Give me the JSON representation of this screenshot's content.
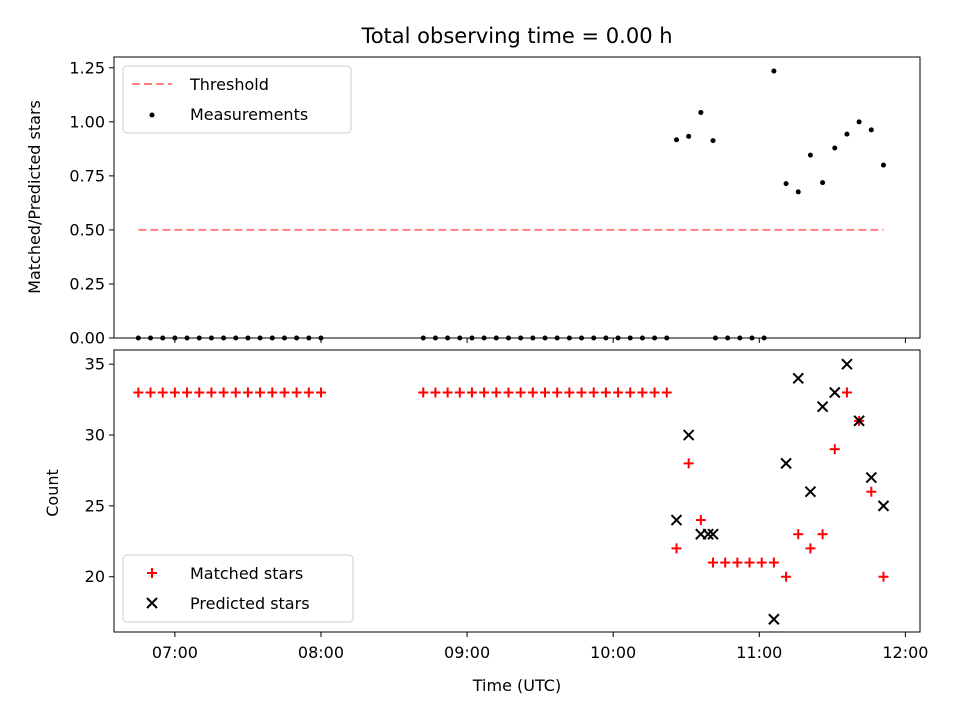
{
  "chart_data": [
    {
      "type": "scatter",
      "title": "Total observing time = 0.00 h",
      "xlabel": "",
      "ylabel": "Matched/Predicted stars",
      "xlim": [
        "06:35",
        "12:06"
      ],
      "ylim": [
        0,
        1.3
      ],
      "yticks": [
        0.0,
        0.25,
        0.5,
        0.75,
        1.0,
        1.25
      ],
      "ytick_labels": [
        "0.00",
        "0.25",
        "0.50",
        "0.75",
        "1.00",
        "1.25"
      ],
      "legend": {
        "position": "top-left",
        "entries": [
          "Threshold",
          "Measurements"
        ]
      },
      "series": [
        {
          "name": "Threshold",
          "style": "dashed-line",
          "color": "#ff7f7f",
          "x": [
            "06:45",
            "11:51"
          ],
          "y": [
            0.5,
            0.5
          ]
        },
        {
          "name": "Measurements",
          "style": "dot",
          "color": "#000000",
          "x": [
            "06:45",
            "06:50",
            "06:55",
            "07:00",
            "07:05",
            "07:10",
            "07:15",
            "07:20",
            "07:25",
            "07:30",
            "07:35",
            "07:40",
            "07:45",
            "07:50",
            "07:55",
            "08:00",
            "08:42",
            "08:47",
            "08:52",
            "08:57",
            "09:02",
            "09:07",
            "09:12",
            "09:17",
            "09:22",
            "09:27",
            "09:32",
            "09:37",
            "09:42",
            "09:47",
            "09:52",
            "09:57",
            "10:02",
            "10:07",
            "10:12",
            "10:17",
            "10:22",
            "10:42",
            "10:47",
            "10:52",
            "10:57",
            "11:02",
            "10:26",
            "10:31",
            "10:36",
            "10:41",
            "11:06",
            "11:11",
            "11:16",
            "11:21",
            "11:26",
            "11:31",
            "11:36",
            "11:41",
            "11:46",
            "11:51"
          ],
          "y": [
            0,
            0,
            0,
            0,
            0,
            0,
            0,
            0,
            0,
            0,
            0,
            0,
            0,
            0,
            0,
            0,
            0,
            0,
            0,
            0,
            0,
            0,
            0,
            0,
            0,
            0,
            0,
            0,
            0,
            0,
            0,
            0,
            0,
            0,
            0,
            0,
            0,
            0,
            0,
            0,
            0,
            0,
            0.917,
            0.933,
            1.043,
            0.913,
            1.235,
            0.714,
            0.676,
            0.846,
            0.719,
            0.879,
            0.943,
            1.0,
            0.963,
            0.8
          ]
        }
      ]
    },
    {
      "type": "scatter",
      "title": "",
      "xlabel": "Time (UTC)",
      "ylabel": "Count",
      "xlim": [
        "06:35",
        "12:06"
      ],
      "ylim": [
        16.1,
        36.0
      ],
      "yticks": [
        20,
        25,
        30,
        35
      ],
      "xticks": [
        "07:00",
        "08:00",
        "09:00",
        "10:00",
        "11:00",
        "12:00"
      ],
      "legend": {
        "position": "bottom-left",
        "entries": [
          "Matched stars",
          "Predicted stars"
        ]
      },
      "series": [
        {
          "name": "Matched stars",
          "marker": "+",
          "color": "#ff0000",
          "x": [
            "06:45",
            "06:50",
            "06:55",
            "07:00",
            "07:05",
            "07:10",
            "07:15",
            "07:20",
            "07:25",
            "07:30",
            "07:35",
            "07:40",
            "07:45",
            "07:50",
            "07:55",
            "08:00",
            "08:42",
            "08:47",
            "08:52",
            "08:57",
            "09:02",
            "09:07",
            "09:12",
            "09:17",
            "09:22",
            "09:27",
            "09:32",
            "09:37",
            "09:42",
            "09:47",
            "09:52",
            "09:57",
            "10:02",
            "10:07",
            "10:12",
            "10:17",
            "10:22",
            "10:26",
            "10:31",
            "10:36",
            "10:41",
            "10:46",
            "10:51",
            "10:56",
            "11:01",
            "11:06",
            "11:11",
            "11:16",
            "11:21",
            "11:26",
            "11:31",
            "11:36",
            "11:41",
            "11:46",
            "11:51"
          ],
          "y": [
            33,
            33,
            33,
            33,
            33,
            33,
            33,
            33,
            33,
            33,
            33,
            33,
            33,
            33,
            33,
            33,
            33,
            33,
            33,
            33,
            33,
            33,
            33,
            33,
            33,
            33,
            33,
            33,
            33,
            33,
            33,
            33,
            33,
            33,
            33,
            33,
            33,
            22,
            28,
            24,
            21,
            21,
            21,
            21,
            21,
            21,
            20,
            23,
            22,
            23,
            29,
            33,
            31,
            26,
            20
          ]
        },
        {
          "name": "Predicted stars",
          "marker": "x",
          "color": "#000000",
          "x": [
            "10:26",
            "10:31",
            "10:36",
            "10:39",
            "10:41",
            "11:06",
            "11:11",
            "11:16",
            "11:21",
            "11:26",
            "11:31",
            "11:36",
            "11:41",
            "11:46",
            "11:51"
          ],
          "y": [
            24,
            30,
            23,
            23,
            23,
            17,
            28,
            34,
            26,
            32,
            33,
            35,
            31,
            27,
            25
          ]
        }
      ]
    }
  ]
}
